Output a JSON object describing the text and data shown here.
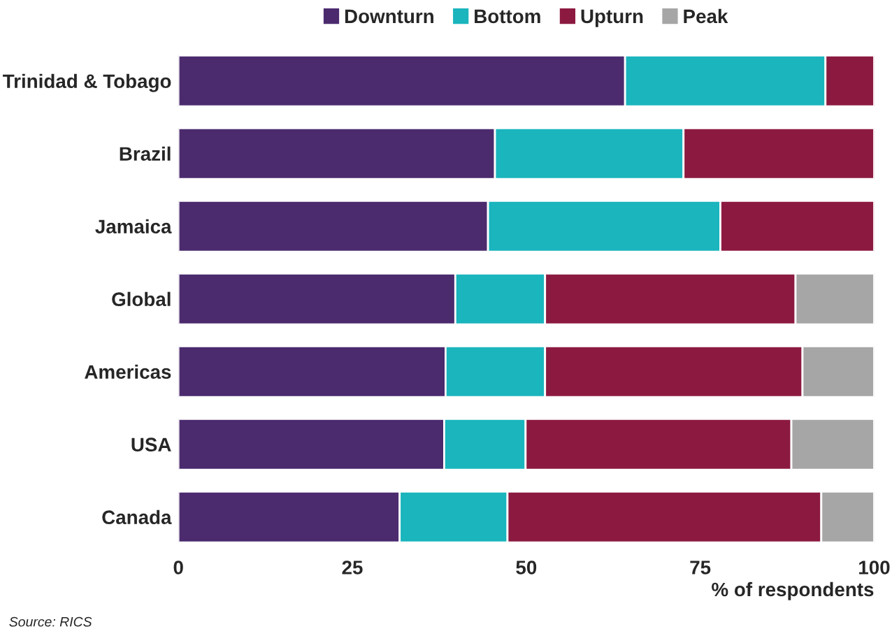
{
  "chart_data": {
    "type": "bar",
    "orientation": "horizontal",
    "stacked": true,
    "legend": "top",
    "grid": false,
    "categories": [
      "Trinidad & Tobago",
      "Brazil",
      "Jamaica",
      "Global",
      "Americas",
      "USA",
      "Canada"
    ],
    "series": [
      {
        "name": "Downturn",
        "color": "#4b2a6e",
        "values": [
          64.2,
          45.5,
          44.5,
          39.8,
          38.4,
          38.2,
          31.8
        ]
      },
      {
        "name": "Bottom",
        "color": "#1ab5bd",
        "values": [
          28.8,
          27.1,
          33.4,
          12.9,
          14.3,
          11.7,
          15.5
        ]
      },
      {
        "name": "Upturn",
        "color": "#8c1a40",
        "values": [
          7.0,
          27.4,
          22.1,
          36.0,
          37.0,
          38.2,
          45.1
        ]
      },
      {
        "name": "Peak",
        "color": "#a6a6a6",
        "values": [
          null,
          null,
          null,
          11.3,
          10.3,
          11.9,
          7.6
        ]
      }
    ],
    "xlim": [
      0,
      100
    ],
    "xticks": [
      0,
      25,
      50,
      75,
      100
    ],
    "xlabel": "% of respondents",
    "annotations": [
      "Source: RICS"
    ]
  }
}
